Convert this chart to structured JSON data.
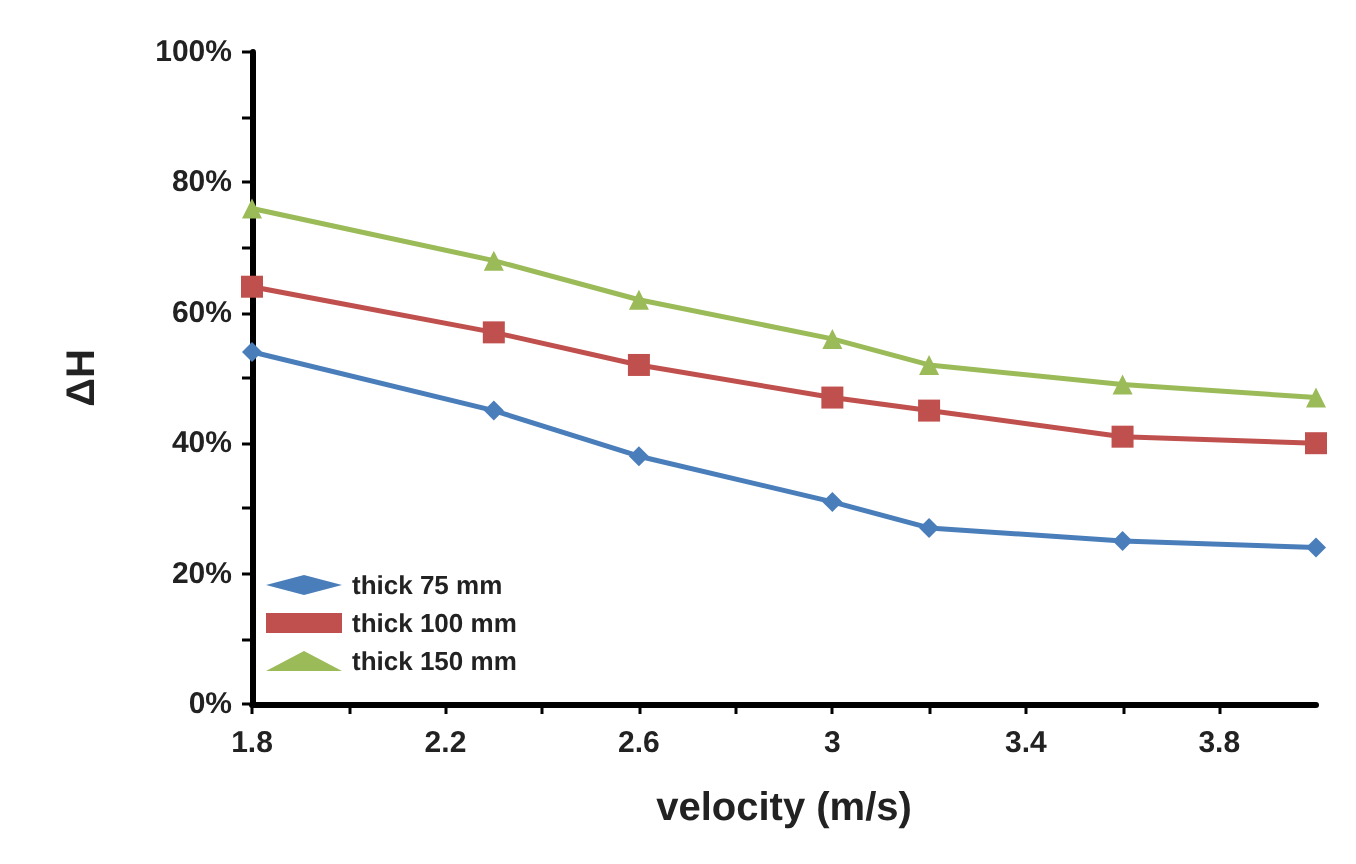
{
  "chart_data": {
    "type": "line",
    "xlabel": "velocity (m/s)",
    "ylabel": "ΔH",
    "xlim": [
      1.8,
      4.0
    ],
    "xticks": [
      1.8,
      {
        "value": 2.0,
        "label": null
      },
      2.2,
      {
        "value": 2.4,
        "label": null
      },
      2.6,
      {
        "value": 2.8,
        "label": null
      },
      3,
      {
        "value": 3.2,
        "label": null
      },
      3.4,
      {
        "value": 3.6,
        "label": null
      },
      3.8
    ],
    "ylim": [
      0,
      100
    ],
    "yticks": [
      {
        "value": 0,
        "label": "0%"
      },
      {
        "value": 10,
        "label": null
      },
      {
        "value": 20,
        "label": "20%"
      },
      {
        "value": 30,
        "label": null
      },
      {
        "value": 40,
        "label": "40%"
      },
      {
        "value": 50,
        "label": null
      },
      {
        "value": 60,
        "label": "60%"
      },
      {
        "value": 70,
        "label": null
      },
      {
        "value": 80,
        "label": "80%"
      },
      {
        "value": 90,
        "label": null
      },
      {
        "value": 100,
        "label": "100%"
      }
    ],
    "x": [
      1.8,
      2.3,
      2.6,
      3.0,
      3.2,
      3.6,
      4.0
    ],
    "series": [
      {
        "name": "thick 75 mm",
        "color": "#4a7ebb",
        "marker": "diamond",
        "values": [
          54,
          45,
          38,
          31,
          27,
          25,
          24
        ]
      },
      {
        "name": "thick 100 mm",
        "color": "#c0504d",
        "marker": "square",
        "values": [
          64,
          57,
          52,
          47,
          45,
          41,
          40
        ]
      },
      {
        "name": "thick 150 mm",
        "color": "#9bbb59",
        "marker": "triangle",
        "values": [
          76,
          68,
          62,
          56,
          52,
          49,
          47
        ]
      }
    ],
    "grid": false,
    "legend": "bottom left",
    "line_style": "solid"
  }
}
